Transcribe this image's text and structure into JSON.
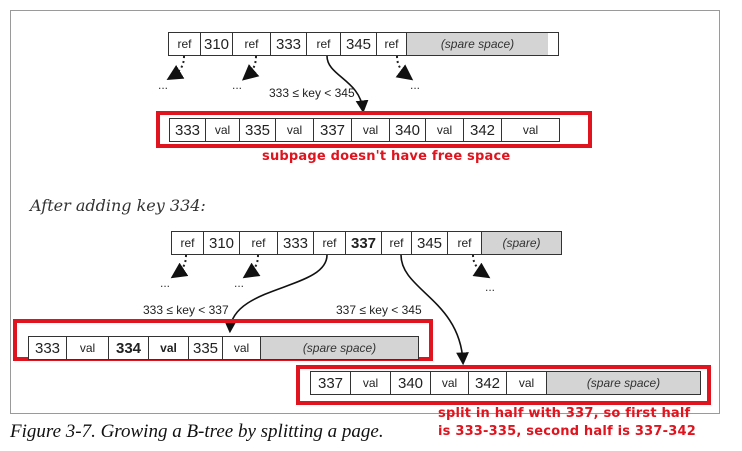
{
  "top_page": {
    "cells": [
      {
        "kind": "ref",
        "text": "ref"
      },
      {
        "kind": "num",
        "text": "310"
      },
      {
        "kind": "ref",
        "text": "ref"
      },
      {
        "kind": "num",
        "text": "333"
      },
      {
        "kind": "ref",
        "text": "ref"
      },
      {
        "kind": "num",
        "text": "345"
      },
      {
        "kind": "ref",
        "text": "ref"
      },
      {
        "kind": "spare",
        "text": "(spare space)"
      }
    ],
    "range_label": "333 ≤ key < 345",
    "ellipsis": "..."
  },
  "subpage": {
    "cells": [
      {
        "kind": "num",
        "text": "333"
      },
      {
        "kind": "val",
        "text": "val"
      },
      {
        "kind": "num",
        "text": "335"
      },
      {
        "kind": "val",
        "text": "val"
      },
      {
        "kind": "num",
        "text": "337"
      },
      {
        "kind": "val",
        "text": "val"
      },
      {
        "kind": "num",
        "text": "340"
      },
      {
        "kind": "val",
        "text": "val"
      },
      {
        "kind": "num",
        "text": "342"
      },
      {
        "kind": "val",
        "text": "val"
      }
    ],
    "note": "subpage doesn't have free space"
  },
  "after_heading": "After adding key 334:",
  "parent_after": {
    "cells": [
      {
        "kind": "ref",
        "text": "ref"
      },
      {
        "kind": "num",
        "text": "310"
      },
      {
        "kind": "ref",
        "text": "ref"
      },
      {
        "kind": "num",
        "text": "333"
      },
      {
        "kind": "ref",
        "text": "ref"
      },
      {
        "kind": "num",
        "text": "337",
        "bold": true
      },
      {
        "kind": "ref",
        "text": "ref"
      },
      {
        "kind": "num",
        "text": "345"
      },
      {
        "kind": "ref",
        "text": "ref"
      },
      {
        "kind": "spare",
        "text": "(spare)"
      }
    ],
    "left_range_label": "333 ≤ key < 337",
    "right_range_label": "337 ≤ key < 345",
    "ellipsis": "..."
  },
  "left_child": {
    "cells": [
      {
        "kind": "num",
        "text": "333"
      },
      {
        "kind": "val",
        "text": "val"
      },
      {
        "kind": "num",
        "text": "334",
        "bold": true
      },
      {
        "kind": "val",
        "text": "val",
        "bold": true
      },
      {
        "kind": "num",
        "text": "335"
      },
      {
        "kind": "val",
        "text": "val"
      },
      {
        "kind": "spare",
        "text": "(spare space)"
      }
    ]
  },
  "right_child": {
    "cells": [
      {
        "kind": "num",
        "text": "337"
      },
      {
        "kind": "val",
        "text": "val"
      },
      {
        "kind": "num",
        "text": "340"
      },
      {
        "kind": "val",
        "text": "val"
      },
      {
        "kind": "num",
        "text": "342"
      },
      {
        "kind": "val",
        "text": "val"
      },
      {
        "kind": "spare",
        "text": "(spare space)"
      }
    ]
  },
  "split_note": {
    "line1": "split in half with 337, so first half",
    "line2": "is 333-335, second half is 337-342"
  },
  "caption": "Figure 3-7. Growing a B-tree by splitting a page.",
  "colors": {
    "annotation_red": "#e0141e",
    "spare_fill": "#d4d4d4"
  }
}
